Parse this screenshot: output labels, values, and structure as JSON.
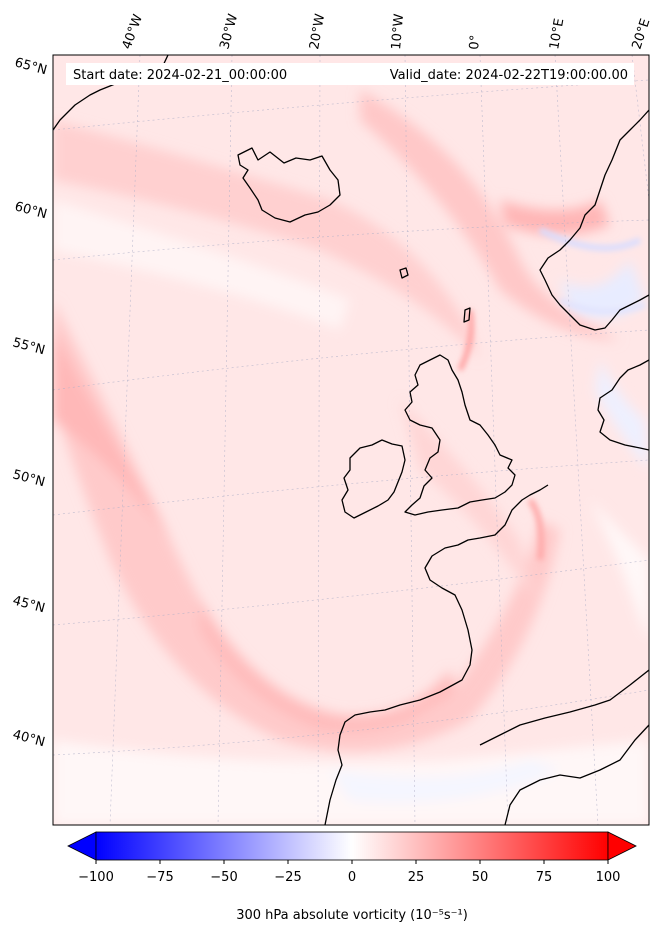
{
  "header": {
    "start_date": "Start date: 2024-02-21_00:00:00",
    "valid_date": "Valid_date: 2024-02-22T19:00:00.00"
  },
  "map": {
    "projection": "conic",
    "lon_labels": [
      "40°W",
      "30°W",
      "20°W",
      "10°W",
      "0°",
      "10°E",
      "20°E"
    ],
    "lat_labels": [
      "65°N",
      "60°N",
      "55°N",
      "50°N",
      "45°N",
      "40°N"
    ],
    "gridlines": "on",
    "coastlines": "on"
  },
  "colorbar": {
    "cmap": "bwr",
    "min": -100,
    "max": 100,
    "ticks": [
      "−100",
      "−75",
      "−50",
      "−25",
      "0",
      "25",
      "50",
      "75",
      "100"
    ],
    "extend": "both",
    "label": "300 hPa absolute vorticity (10⁻⁵s⁻¹)",
    "colors": {
      "negative": "#0000ff",
      "zero": "#ffffff",
      "positive": "#ff0000"
    }
  }
}
